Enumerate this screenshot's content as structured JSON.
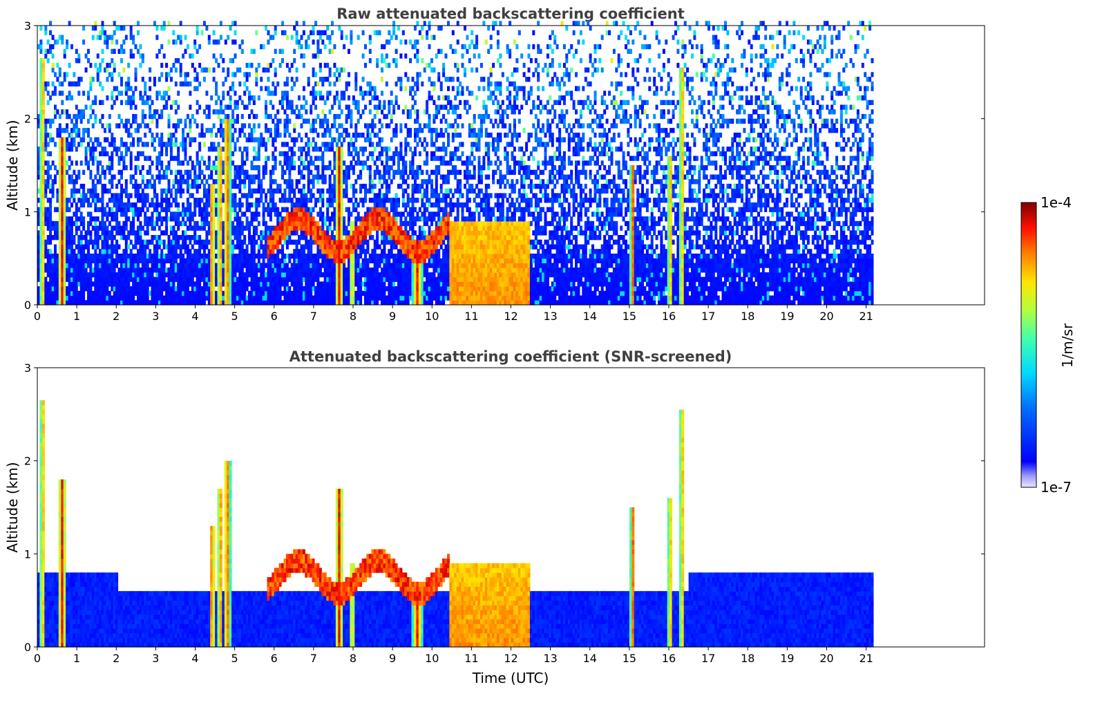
{
  "chart_data": [
    {
      "type": "heatmap",
      "title": "Raw attenuated backscattering coefficient",
      "xlabel": "",
      "ylabel": "Altitude (km)",
      "xlim": [
        0,
        24
      ],
      "ylim": [
        0,
        3
      ],
      "xticks": [
        "0",
        "1",
        "2",
        "3",
        "4",
        "5",
        "6",
        "7",
        "8",
        "9",
        "10",
        "11",
        "12",
        "13",
        "14",
        "15",
        "16",
        "17",
        "18",
        "19",
        "20",
        "21"
      ],
      "yticks": [
        "0",
        "1",
        "2",
        "3"
      ],
      "data_extent_hours": [
        0,
        21.15
      ],
      "screened": false
    },
    {
      "type": "heatmap",
      "title": "Attenuated backscattering coefficient (SNR-screened)",
      "xlabel": "Time (UTC)",
      "ylabel": "Altitude (km)",
      "xlim": [
        0,
        24
      ],
      "ylim": [
        0,
        3
      ],
      "xticks": [
        "0",
        "1",
        "2",
        "3",
        "4",
        "5",
        "6",
        "7",
        "8",
        "9",
        "10",
        "11",
        "12",
        "13",
        "14",
        "15",
        "16",
        "17",
        "18",
        "19",
        "20",
        "21"
      ],
      "yticks": [
        "0",
        "1",
        "2",
        "3"
      ],
      "data_extent_hours": [
        0,
        21.15
      ],
      "screened": true
    }
  ],
  "colorbar": {
    "max_label": "1e-4",
    "min_label": "1e-7",
    "unit_label": "1/m/sr",
    "scale": "log",
    "colormap": "jet"
  },
  "features": {
    "strong_columns": [
      {
        "t": 0.1,
        "w": 0.1,
        "top": 2.6
      },
      {
        "t": 0.6,
        "w": 0.2,
        "top": 1.8
      },
      {
        "t": 4.4,
        "w": 0.15,
        "top": 1.3
      },
      {
        "t": 4.6,
        "w": 0.12,
        "top": 1.7
      },
      {
        "t": 4.78,
        "w": 0.18,
        "top": 2.0
      },
      {
        "t": 7.62,
        "w": 0.2,
        "top": 1.7
      },
      {
        "t": 7.95,
        "w": 0.1,
        "top": 0.9
      },
      {
        "t": 9.6,
        "w": 0.25,
        "top": 0.7
      },
      {
        "t": 15.05,
        "w": 0.12,
        "top": 1.5
      },
      {
        "t": 16.0,
        "w": 0.1,
        "top": 1.6
      },
      {
        "t": 16.3,
        "w": 0.1,
        "top": 2.5
      }
    ],
    "boundary_layer": {
      "t0": 10.4,
      "t1": 12.45,
      "top": 0.9
    },
    "thin_layer": {
      "t0": 5.8,
      "t1": 10.4,
      "alt0": 0.55,
      "alt1": 0.9
    }
  }
}
